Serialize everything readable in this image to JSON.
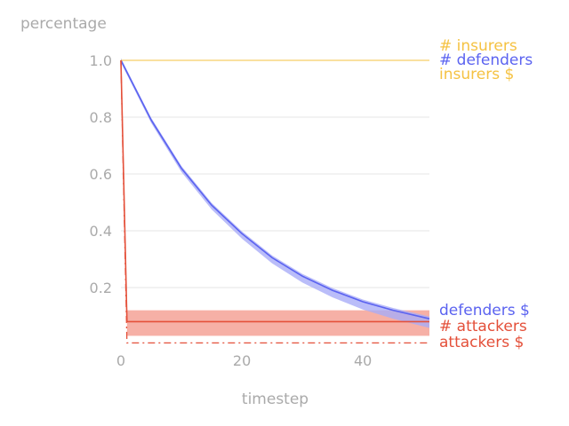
{
  "chart_data": {
    "type": "line",
    "xlabel": "timestep",
    "ylabel": "percentage",
    "xlim": [
      0,
      51
    ],
    "ylim": [
      0,
      1.05
    ],
    "xticks": [
      0,
      20,
      40
    ],
    "yticks": [
      0.2,
      0.4,
      0.6,
      0.8,
      1.0
    ],
    "ytick_labels": [
      "0.2",
      "0.4",
      "0.6",
      "0.8",
      "1.0"
    ],
    "grid": "horizontal",
    "legend": "right-end labels",
    "series": [
      {
        "name": "# insurers",
        "color": "#f5c242",
        "style": "solid",
        "x": [
          0,
          51
        ],
        "y": [
          1.0,
          1.0
        ]
      },
      {
        "name": "# defenders",
        "color": "#5b63f0",
        "style": "solid",
        "x": [
          0,
          5,
          10,
          15,
          20,
          25,
          30,
          35,
          40,
          45,
          51
        ],
        "y": [
          1.0,
          0.79,
          0.62,
          0.49,
          0.39,
          0.305,
          0.24,
          0.19,
          0.15,
          0.12,
          0.09
        ],
        "band_half_width": 0.008
      },
      {
        "name": "insurers $",
        "color": "#f5c242",
        "style": "dashed",
        "x": [
          0,
          51
        ],
        "y": [
          1.0,
          1.0
        ]
      },
      {
        "name": "defenders $",
        "color": "#5b63f0",
        "style": "dashed",
        "x": [
          0,
          5,
          10,
          15,
          20,
          25,
          30,
          35,
          40,
          45,
          51
        ],
        "y": [
          1.0,
          0.79,
          0.62,
          0.49,
          0.39,
          0.305,
          0.24,
          0.19,
          0.15,
          0.12,
          0.09
        ]
      },
      {
        "name": "# attackers",
        "color": "#e4503a",
        "style": "solid",
        "x": [
          0,
          1,
          51
        ],
        "y": [
          1.0,
          0.08,
          0.08
        ],
        "band": {
          "x_start": 1,
          "x_end": 51,
          "low": 0.03,
          "high": 0.12
        }
      },
      {
        "name": "attackers $",
        "color": "#e4503a",
        "style": "dashdot",
        "x": [
          0,
          1,
          51
        ],
        "y": [
          1.0,
          0.005,
          0.005
        ]
      }
    ]
  }
}
